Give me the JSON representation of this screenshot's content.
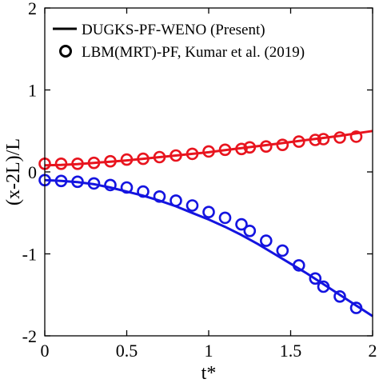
{
  "chart_data": {
    "type": "line",
    "xlabel": "t*",
    "ylabel": "(x-2L)/L",
    "xlim": [
      0,
      2
    ],
    "ylim": [
      -2,
      2
    ],
    "xticks": [
      0,
      0.5,
      1,
      1.5,
      2
    ],
    "xtick_labels": [
      "0",
      "0.5",
      "1",
      "1.5",
      "2"
    ],
    "yticks": [
      -2,
      -1,
      0,
      1,
      2
    ],
    "ytick_labels": [
      "-2",
      "-1",
      "0",
      "1",
      "2"
    ],
    "grid": false,
    "legend_position": "top",
    "legend": [
      {
        "label": "DUGKS-PF-WENO (Present)",
        "marker": "line"
      },
      {
        "label": "LBM(MRT)-PF, Kumar et al. (2019)",
        "marker": "circle"
      }
    ],
    "series": [
      {
        "group": "bubble",
        "kind": "line",
        "color": "#e8141e",
        "x": [
          0,
          0.1,
          0.2,
          0.3,
          0.4,
          0.5,
          0.6,
          0.7,
          0.8,
          0.9,
          1.0,
          1.1,
          1.2,
          1.3,
          1.4,
          1.5,
          1.6,
          1.7,
          1.8,
          1.9,
          2.0
        ],
        "y": [
          0.08,
          0.085,
          0.095,
          0.11,
          0.125,
          0.14,
          0.16,
          0.18,
          0.2,
          0.22,
          0.24,
          0.265,
          0.29,
          0.315,
          0.34,
          0.365,
          0.39,
          0.415,
          0.44,
          0.47,
          0.5
        ]
      },
      {
        "group": "bubble",
        "kind": "scatter",
        "color": "#e8141e",
        "x": [
          0.0,
          0.1,
          0.2,
          0.3,
          0.4,
          0.5,
          0.6,
          0.7,
          0.8,
          0.9,
          1.0,
          1.1,
          1.2,
          1.25,
          1.35,
          1.45,
          1.55,
          1.65,
          1.7,
          1.8,
          1.9
        ],
        "y": [
          0.1,
          0.1,
          0.1,
          0.11,
          0.13,
          0.15,
          0.16,
          0.18,
          0.2,
          0.22,
          0.25,
          0.27,
          0.28,
          0.3,
          0.31,
          0.33,
          0.37,
          0.39,
          0.4,
          0.42,
          0.43
        ]
      },
      {
        "group": "spike",
        "kind": "line",
        "color": "#1414e0",
        "x": [
          0,
          0.1,
          0.2,
          0.3,
          0.4,
          0.5,
          0.6,
          0.7,
          0.8,
          0.9,
          1.0,
          1.1,
          1.2,
          1.3,
          1.4,
          1.5,
          1.6,
          1.7,
          1.8,
          1.9,
          2.0
        ],
        "y": [
          -0.1,
          -0.11,
          -0.125,
          -0.15,
          -0.19,
          -0.24,
          -0.29,
          -0.35,
          -0.42,
          -0.5,
          -0.58,
          -0.67,
          -0.77,
          -0.88,
          -1.0,
          -1.12,
          -1.24,
          -1.37,
          -1.5,
          -1.63,
          -1.76
        ]
      },
      {
        "group": "spike",
        "kind": "scatter",
        "color": "#1414e0",
        "x": [
          0.0,
          0.1,
          0.2,
          0.3,
          0.4,
          0.5,
          0.6,
          0.7,
          0.8,
          0.9,
          1.0,
          1.1,
          1.2,
          1.25,
          1.35,
          1.45,
          1.55,
          1.65,
          1.7,
          1.8,
          1.9
        ],
        "y": [
          -0.1,
          -0.11,
          -0.12,
          -0.14,
          -0.16,
          -0.19,
          -0.24,
          -0.3,
          -0.35,
          -0.41,
          -0.49,
          -0.56,
          -0.64,
          -0.72,
          -0.84,
          -0.96,
          -1.14,
          -1.3,
          -1.4,
          -1.52,
          -1.66
        ]
      }
    ]
  }
}
